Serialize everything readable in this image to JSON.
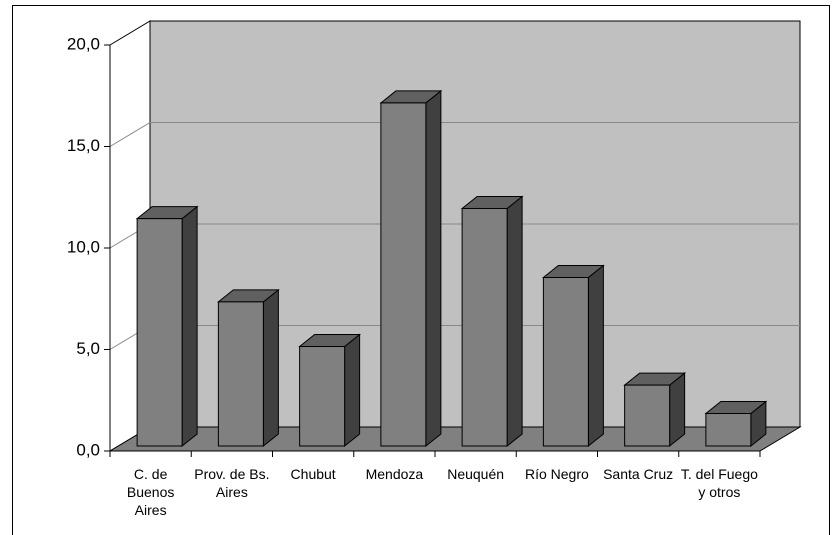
{
  "chart_data": {
    "type": "bar3d",
    "categories": [
      "C. de Buenos Aires",
      "Prov. de Bs. Aires",
      "Chubut",
      "Mendoza",
      "Neuquén",
      "Río Negro",
      "Santa Cruz",
      "T. del Fuego y otros"
    ],
    "values": [
      11.2,
      7.1,
      4.9,
      16.9,
      11.7,
      8.3,
      3.0,
      1.6
    ],
    "color": "#808080",
    "ylim": [
      0,
      20
    ],
    "yticks": [
      {
        "value": 0,
        "label": "0,0"
      },
      {
        "value": 5,
        "label": "5,0"
      },
      {
        "value": 10,
        "label": "10,0"
      },
      {
        "value": 15,
        "label": "15,0"
      },
      {
        "value": 20,
        "label": "20,0"
      }
    ],
    "grid": true
  }
}
